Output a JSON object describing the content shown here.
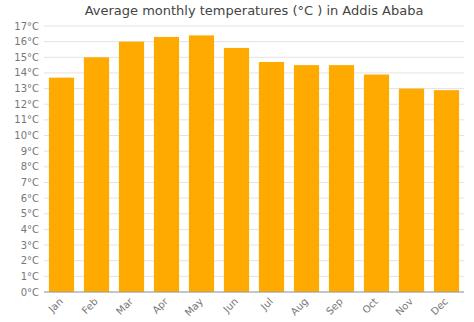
{
  "chart_data": {
    "type": "bar",
    "title": "Average monthly temperatures (°C ) in Addis Ababa",
    "categories": [
      "Jan",
      "Feb",
      "Mar",
      "Apr",
      "May",
      "Jun",
      "Jul",
      "Aug",
      "Sep",
      "Oct",
      "Nov",
      "Dec"
    ],
    "values": [
      13.7,
      15.0,
      16.0,
      16.3,
      16.4,
      15.6,
      14.7,
      14.5,
      14.5,
      13.9,
      13.0,
      12.9
    ],
    "color": "#FFAA00",
    "ylim": [
      0,
      17
    ],
    "yticks": [
      {
        "value": 0,
        "label": "0°C"
      },
      {
        "value": 1,
        "label": "1°C"
      },
      {
        "value": 2,
        "label": "2°C"
      },
      {
        "value": 3,
        "label": "3°C"
      },
      {
        "value": 4,
        "label": "4°C"
      },
      {
        "value": 5,
        "label": "5°C"
      },
      {
        "value": 6,
        "label": "6°C"
      },
      {
        "value": 7,
        "label": "7°C"
      },
      {
        "value": 8,
        "label": "8°C"
      },
      {
        "value": 9,
        "label": "9°C"
      },
      {
        "value": 10,
        "label": "10°C"
      },
      {
        "value": 11,
        "label": "11°C"
      },
      {
        "value": 12,
        "label": "12°C"
      },
      {
        "value": 13,
        "label": "13°C"
      },
      {
        "value": 14,
        "label": "14°C"
      },
      {
        "value": 15,
        "label": "15°C"
      },
      {
        "value": 16,
        "label": "16°C"
      },
      {
        "value": 17,
        "label": "17°C"
      }
    ],
    "grid": true
  }
}
